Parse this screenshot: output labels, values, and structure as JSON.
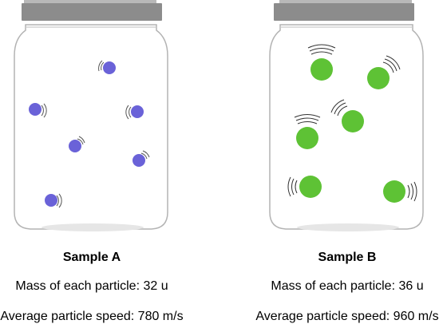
{
  "samples": [
    {
      "title": "Sample A",
      "mass_text": "Mass of each particle: 32 u",
      "speed_text": "Average particle speed: 780 m/s",
      "particle_color": "#6a62d8",
      "particle_count": 6
    },
    {
      "title": "Sample B",
      "mass_text": "Mass of each particle: 36 u",
      "speed_text": "Average particle speed: 960 m/s",
      "particle_color": "#5ec235",
      "particle_count": 6
    }
  ],
  "colors": {
    "lid": "#8c8c8c",
    "jar_outline": "#b3b3b3",
    "jar_base": "#e6e6e6"
  }
}
